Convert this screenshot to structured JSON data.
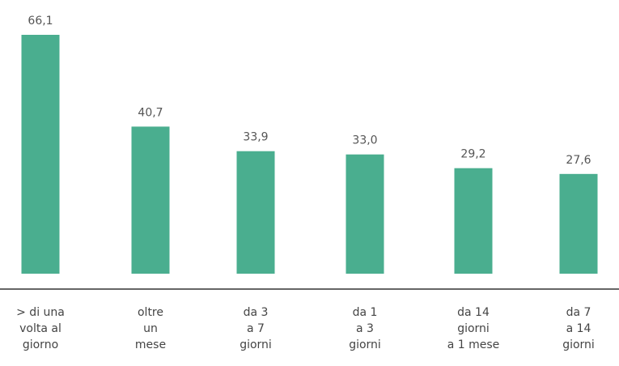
{
  "chart_data": {
    "type": "bar",
    "categories": [
      [
        "> di una",
        "volta al",
        "giorno"
      ],
      [
        "oltre",
        "un",
        "mese"
      ],
      [
        "da 3",
        "a 7",
        "giorni"
      ],
      [
        "da 1",
        "a 3",
        "giorni"
      ],
      [
        "da 14",
        "giorni",
        "a 1 mese"
      ],
      [
        "da 7",
        "a 14",
        "giorni"
      ]
    ],
    "values": [
      66.1,
      40.7,
      33.9,
      33.0,
      29.2,
      27.6
    ],
    "value_labels": [
      "66,1",
      "40,7",
      "33,9",
      "33,0",
      "29,2",
      "27,6"
    ],
    "ylim": [
      0,
      66.1
    ],
    "bar_color": "#4aae8f",
    "axis_color": "#666666",
    "grid": false
  }
}
